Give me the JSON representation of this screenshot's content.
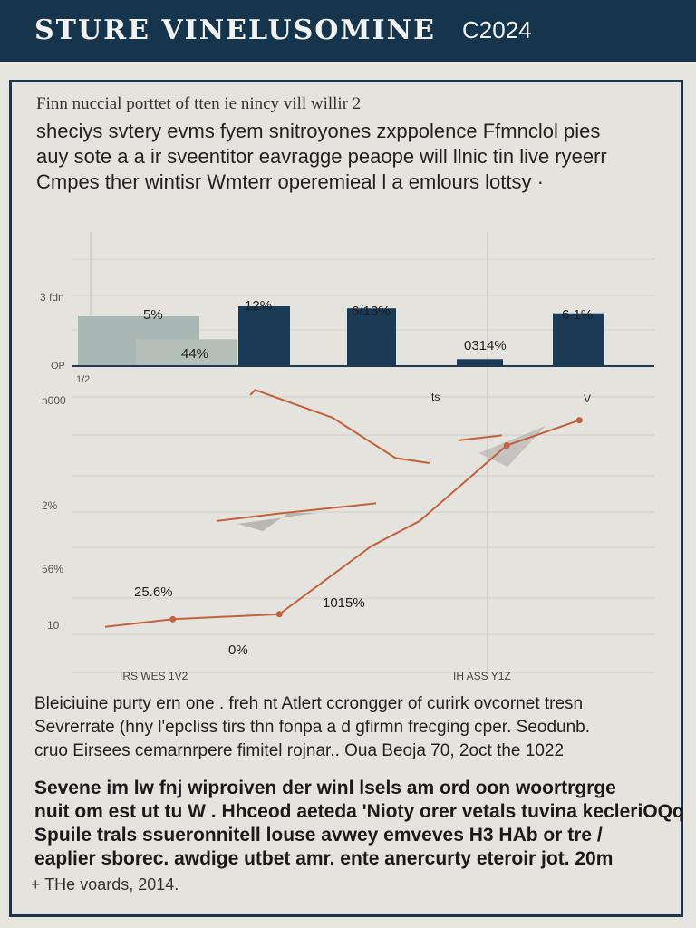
{
  "header": {
    "title": "STURE VINELUSOMINE",
    "year": "C2024"
  },
  "intro": {
    "small": "Finn nuccial porttet of tten ie nincy vill willir 2",
    "lines": [
      "sheciys svtery evms fyem snitroyones zxppolence Ffmnclol pies",
      "auy sote a a ir sveentitor eavragge peaope will llnic tin live ryeerr",
      "Cmpes ther wintisr Wmterr operemieal l a emlours lottsy ·"
    ]
  },
  "chart_data": [
    {
      "type": "bar",
      "ylim": [
        0,
        1
      ],
      "y_ticks": [
        "3 fdn",
        "OP"
      ],
      "x_ticks": [
        "1/2"
      ],
      "values": [
        0.5,
        0.27,
        0.6,
        0.58,
        0.07,
        0.53
      ],
      "bar_labels": [
        "5%",
        "44%",
        "12%",
        "6/13%",
        "0314%",
        "6 1%"
      ],
      "colors": [
        "#a9b8b4",
        "#b4bfba",
        "#1a3a55",
        "#1a3a55",
        "#1a3a55",
        "#1a3a55"
      ]
    },
    {
      "type": "line",
      "y_ticks": [
        "n000",
        "2%",
        "56%",
        "10"
      ],
      "x_ticks": [
        "IRS WES 1V2",
        "IH ASS Y1Z"
      ],
      "series": [
        {
          "color": "#c0623e",
          "points": [
            [
              0.0,
              0.03
            ],
            [
              0.14,
              0.06
            ],
            [
              0.36,
              0.08
            ],
            [
              0.55,
              0.35
            ],
            [
              0.65,
              0.45
            ],
            [
              0.83,
              0.75
            ],
            [
              0.98,
              0.85
            ]
          ]
        },
        {
          "color": "#c0623e",
          "points": [
            [
              0.3,
              0.95
            ],
            [
              0.31,
              0.97
            ],
            [
              0.47,
              0.86
            ],
            [
              0.6,
              0.7
            ],
            [
              0.67,
              0.68
            ]
          ]
        },
        {
          "color": "#c0623e",
          "points": [
            [
              0.23,
              0.45
            ],
            [
              0.36,
              0.48
            ],
            [
              0.56,
              0.52
            ]
          ]
        },
        {
          "color": "#c0623e",
          "points": [
            [
              0.73,
              0.77
            ],
            [
              0.82,
              0.79
            ]
          ]
        }
      ],
      "annotations": [
        "25.6%",
        "1015%",
        "0%",
        "ts",
        "V"
      ]
    }
  ],
  "paragraph1": [
    "Bleiciuine purty ern one . freh nt Atlert ccrongger of curirk ovcornet tresn",
    "Sevrerrate (hny l'epcliss tirs thn fonpa a d gfirmn frecging cper. Seodunb.",
    "cruo Eirsees cemarnrpere fimitel rojnar.. Oua Beoja 70, 2oct the 1022"
  ],
  "paragraph2": [
    "Sevene im lw fnj wiproiven der winl lsels am ord oon woortrgrge",
    "nuit om est ut tu W . Hhceod aeteda 'Nioty orer vetals tuvina kecleriOQq",
    "Spuile trals ssueronnitell louse avwey emveves H3 HAb or tre /",
    "eaplier sborec. awdige utbet amr. ente anercurty eteroir jot. 20m"
  ],
  "footnote": "+ THe voards, 2014."
}
